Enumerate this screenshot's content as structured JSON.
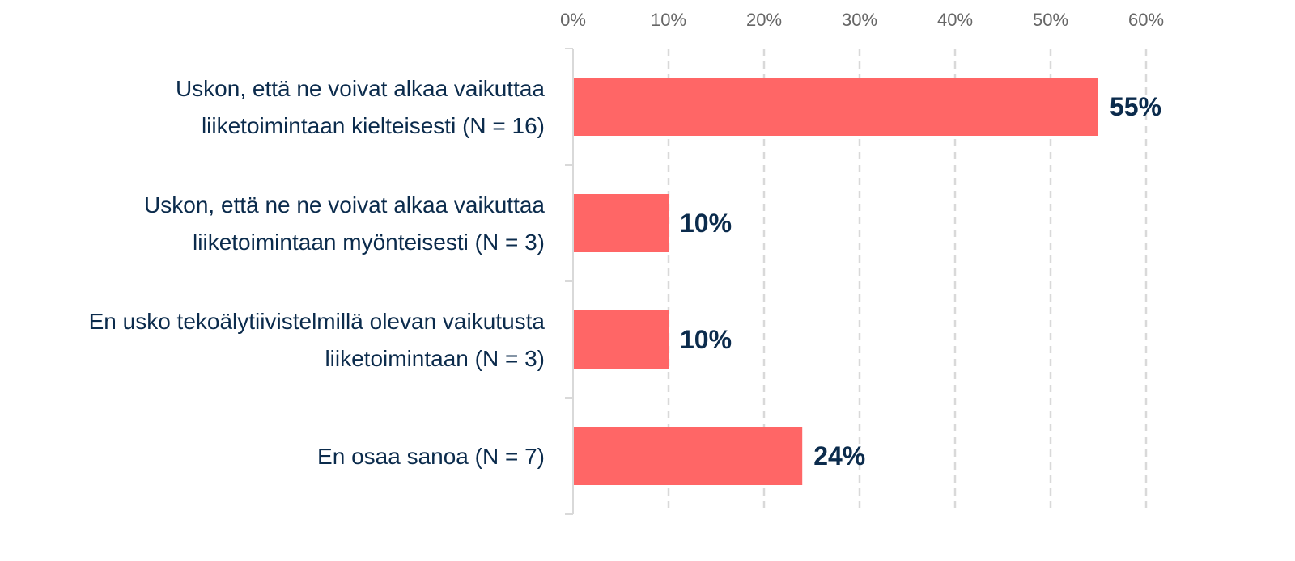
{
  "chart_data": {
    "type": "bar",
    "orientation": "horizontal",
    "categories": [
      [
        "Uskon, että ne voivat alkaa vaikuttaa",
        "liiketoimintaan kielteisesti (N = 16)"
      ],
      [
        "Uskon, että ne ne voivat alkaa vaikuttaa",
        "liiketoimintaan myönteisesti (N = 3)"
      ],
      [
        "En usko tekoälytiivistelmillä olevan vaikutusta",
        "liiketoimintaan (N = 3)"
      ],
      [
        "En osaa sanoa (N = 7)"
      ]
    ],
    "values": [
      55,
      10,
      10,
      24
    ],
    "value_labels": [
      "55%",
      "10%",
      "10%",
      "24%"
    ],
    "x_ticks": [
      "0%",
      "10%",
      "20%",
      "30%",
      "40%",
      "50%",
      "60%"
    ],
    "xlim": [
      0,
      60
    ],
    "x_axis_position": "top",
    "grid": "vertical dashed",
    "legend": "none",
    "title": "",
    "xlabel": "",
    "ylabel": "",
    "colors": {
      "bar": "#ff6666",
      "text": "#0b2b4c",
      "tick_text": "#666666",
      "grid": "#d9d9d9",
      "axis": "#d9d9d9"
    }
  }
}
